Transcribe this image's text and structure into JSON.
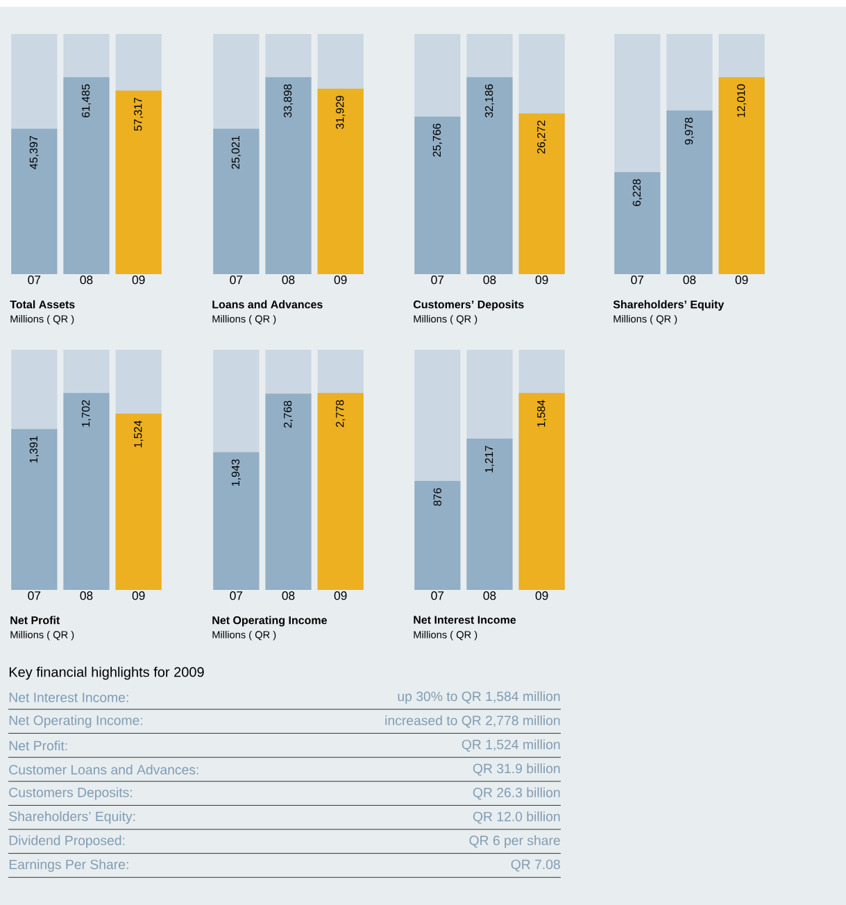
{
  "chart_data": [
    {
      "type": "bar",
      "title": "Total Assets",
      "subtitle": "Millions ( QR )",
      "categories": [
        "07",
        "08",
        "09"
      ],
      "values": [
        45397,
        61485,
        57317
      ],
      "colors": [
        "#93afc5",
        "#93afc5",
        "#ecb020"
      ],
      "tick_labels": "x",
      "value_labels": [
        "45,397",
        "61,485",
        "57,317"
      ]
    },
    {
      "type": "bar",
      "title": "Loans and Advances",
      "subtitle": "Millions ( QR )",
      "categories": [
        "07",
        "08",
        "09"
      ],
      "values": [
        25021,
        33898,
        31929
      ],
      "colors": [
        "#93afc5",
        "#93afc5",
        "#ecb020"
      ],
      "tick_labels": "x",
      "value_labels": [
        "25,021",
        "33,898",
        "31,929"
      ]
    },
    {
      "type": "bar",
      "title": "Customers’ Deposits",
      "subtitle": "Millions ( QR )",
      "categories": [
        "07",
        "08",
        "09"
      ],
      "values": [
        25766,
        32186,
        26272
      ],
      "colors": [
        "#93afc5",
        "#93afc5",
        "#ecb020"
      ],
      "tick_labels": "x",
      "value_labels": [
        "25,766",
        "32,186",
        "26,272"
      ]
    },
    {
      "type": "bar",
      "title": "Shareholders’ Equity",
      "subtitle": "Millions ( QR )",
      "categories": [
        "07",
        "08",
        "09"
      ],
      "values": [
        6228,
        9978,
        12010
      ],
      "colors": [
        "#93afc5",
        "#93afc5",
        "#ecb020"
      ],
      "tick_labels": "x",
      "value_labels": [
        "6,228",
        "9,978",
        "12,010"
      ]
    },
    {
      "type": "bar",
      "title": "Net Profit",
      "subtitle": "Millions ( QR )",
      "categories": [
        "07",
        "08",
        "09"
      ],
      "values": [
        1391,
        1702,
        1524
      ],
      "colors": [
        "#93afc5",
        "#93afc5",
        "#ecb020"
      ],
      "tick_labels": "x",
      "value_labels": [
        "1,391",
        "1,702",
        "1,524"
      ]
    },
    {
      "type": "bar",
      "title": "Net Operating Income",
      "subtitle": "Millions ( QR )",
      "categories": [
        "07",
        "08",
        "09"
      ],
      "values": [
        1943,
        2768,
        2778
      ],
      "colors": [
        "#93afc5",
        "#93afc5",
        "#ecb020"
      ],
      "tick_labels": "x",
      "value_labels": [
        "1,943",
        "2,768",
        "2,778"
      ]
    },
    {
      "type": "bar",
      "title": "Net Interest Income",
      "subtitle": "Millions ( QR )",
      "categories": [
        "07",
        "08",
        "09"
      ],
      "values": [
        876,
        1217,
        1584
      ],
      "colors": [
        "#93afc5",
        "#93afc5",
        "#ecb020"
      ],
      "tick_labels": "x",
      "value_labels": [
        "876",
        "1,217",
        "1,584"
      ]
    },
    {
      "type": "other",
      "title": "Key financial highlights for 2009",
      "annotations": [
        "Net Interest Income:",
        "up 30% to QR 1,584 million",
        "Net Operating Income:",
        "increased to QR 2,778 million",
        "Net Profit:",
        "QR 1,524 million",
        "Customer Loans and Advances:",
        "QR 31.9 billion",
        "Customers Deposits:",
        "QR 26.3 billion",
        "Shareholders’ Equity:",
        "QR 12.0 billion",
        "Dividend Proposed:",
        "QR 6 per share",
        "Earnings Per Share:",
        "QR 7.08"
      ]
    }
  ]
}
